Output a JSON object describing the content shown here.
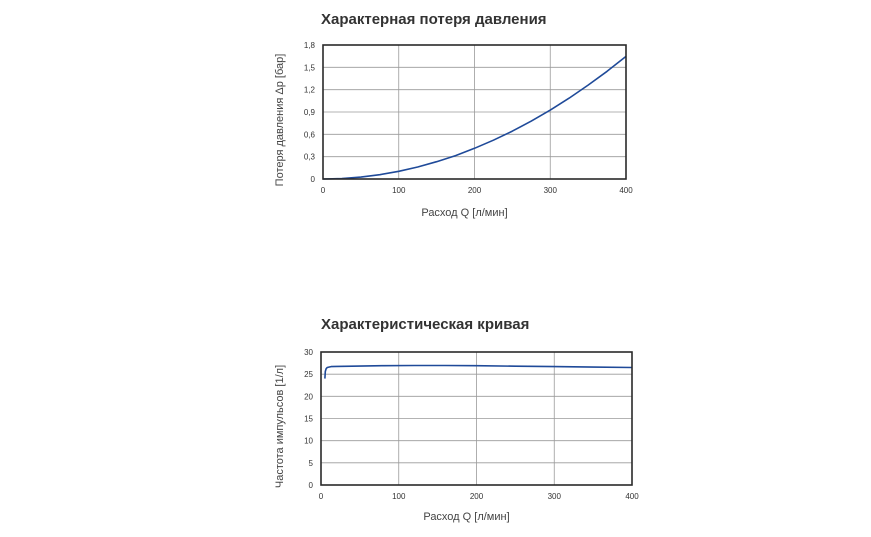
{
  "chart_data": [
    {
      "type": "line",
      "title": "Характерная потеря давления",
      "xlabel": "Расход Q [л/мин]",
      "ylabel": "Потеря давления Δp [бар]",
      "xlim": [
        0,
        400
      ],
      "ylim": [
        0,
        1.8
      ],
      "xticks": [
        "0",
        "100",
        "200",
        "300",
        "400"
      ],
      "yticks": [
        "0",
        "0,3",
        "0,6",
        "0,9",
        "1,2",
        "1,5",
        "1,8"
      ],
      "grid": true,
      "legend": "none",
      "series_color": "#1f4a99",
      "series": [
        {
          "x": [
            0,
            25,
            50,
            75,
            100,
            125,
            150,
            175,
            200,
            225,
            250,
            275,
            300,
            325,
            350,
            375,
            400
          ],
          "values": [
            0,
            0.006,
            0.026,
            0.058,
            0.103,
            0.161,
            0.232,
            0.315,
            0.412,
            0.521,
            0.643,
            0.778,
            0.926,
            1.087,
            1.261,
            1.447,
            1.647
          ]
        }
      ]
    },
    {
      "type": "line",
      "title": "Характеристическая кривая",
      "xlabel": "Расход Q [л/мин]",
      "ylabel": "Частота импульсов [1/л]",
      "xlim": [
        0,
        400
      ],
      "ylim": [
        0,
        30
      ],
      "xticks": [
        "0",
        "100",
        "200",
        "300",
        "400"
      ],
      "yticks": [
        "0",
        "5",
        "10",
        "15",
        "20",
        "25",
        "30"
      ],
      "grid": true,
      "legend": "none",
      "series_color": "#1f4a99",
      "series": [
        {
          "x": [
            5,
            5.5,
            6.5,
            8,
            10,
            13,
            20,
            40,
            80,
            120,
            160,
            200,
            250,
            300,
            350,
            400
          ],
          "values": [
            24,
            25.6,
            26.2,
            26.5,
            26.6,
            26.7,
            26.75,
            26.8,
            26.9,
            26.95,
            26.95,
            26.9,
            26.8,
            26.7,
            26.6,
            26.5
          ]
        }
      ]
    }
  ]
}
